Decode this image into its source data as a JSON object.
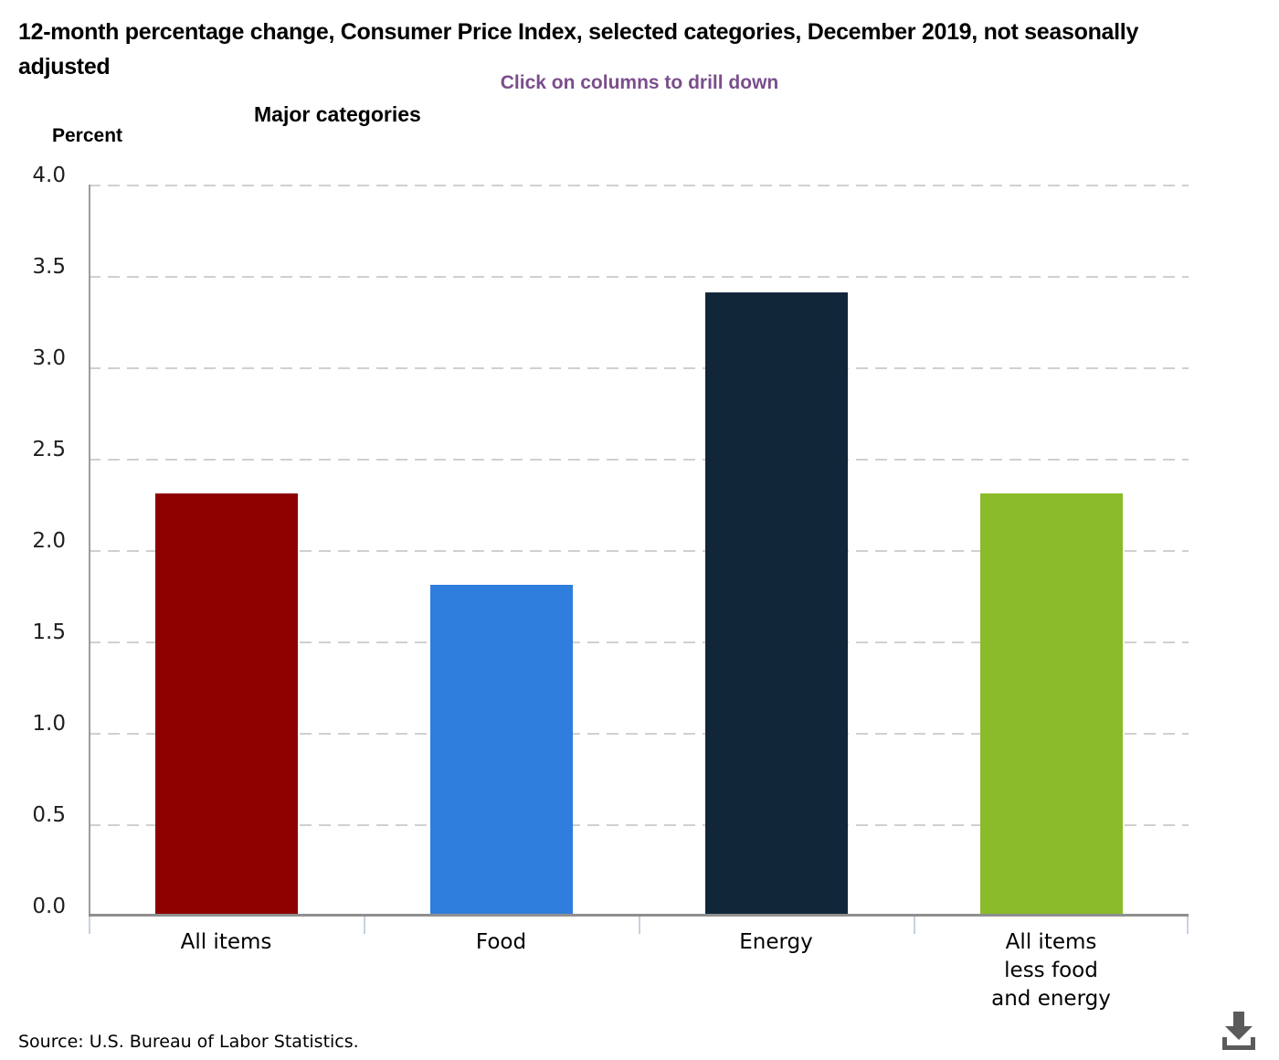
{
  "header": {
    "title": "12-month percentage change, Consumer Price Index, selected categories, December 2019, not seasonally adjusted",
    "subtitle": "Click on columns to drill down"
  },
  "chart_data": {
    "type": "bar",
    "title": "12-month percentage change, Consumer Price Index, selected categories, December 2019, not seasonally adjusted",
    "subtitle": "Click on columns to drill down",
    "group_label": "Major categories",
    "y_axis_label": "Percent",
    "categories": [
      "All items",
      "Food",
      "Energy",
      "All items\nless food\nand energy"
    ],
    "values": [
      2.3,
      1.8,
      3.4,
      2.3
    ],
    "bar_colors": [
      "#8E0000",
      "#2F7DDC",
      "#112639",
      "#8ABB2A"
    ],
    "ylim": [
      0.0,
      4.0
    ],
    "ytick_step": 0.5,
    "yticks": [
      "4.0",
      "3.5",
      "3.0",
      "2.5",
      "2.0",
      "1.5",
      "1.0",
      "0.5",
      "0.0"
    ],
    "grid": "horizontal-dashed",
    "legend": "none",
    "interaction_hint": "columns are clickable to drill down"
  },
  "footer": {
    "source": "Source: U.S. Bureau of Labor Statistics."
  },
  "icons": {
    "download": "download-icon"
  },
  "colors": {
    "accent_purple": "#7A4E8C",
    "gridline": "#D0D0D0",
    "axis_line": "#8F8F8F",
    "axis_tick": "#C8D1E2",
    "download_icon": "#5B5B5B",
    "title_text": "#000000",
    "tick_label_text": "#1F1F1F"
  }
}
